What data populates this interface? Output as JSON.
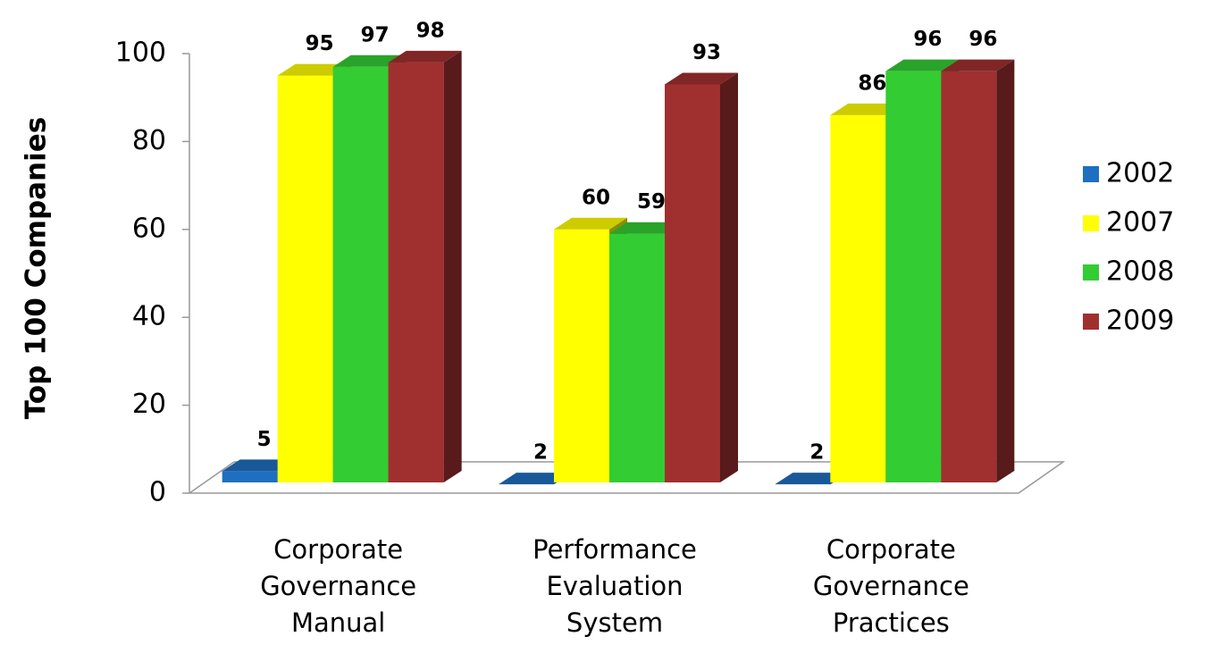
{
  "chart_data": {
    "type": "bar3d",
    "y_label": "Top 100 Companies",
    "categories": [
      "Corporate Governance Manual",
      "Performance Evaluation System",
      "Corporate Governance Practices"
    ],
    "series": [
      {
        "name": "2002",
        "color": "#1f6fc0",
        "values": [
          5,
          2,
          2
        ]
      },
      {
        "name": "2007",
        "color": "#ffff00",
        "values": [
          95,
          60,
          86
        ]
      },
      {
        "name": "2008",
        "color": "#33cc33",
        "values": [
          97,
          59,
          96
        ]
      },
      {
        "name": "2009",
        "color": "#a0302f",
        "values": [
          98,
          93,
          96
        ]
      }
    ],
    "ylim": [
      0,
      100
    ],
    "yticks": [
      0,
      20,
      40,
      60,
      80,
      100
    ],
    "grid": false,
    "legend": "right"
  }
}
